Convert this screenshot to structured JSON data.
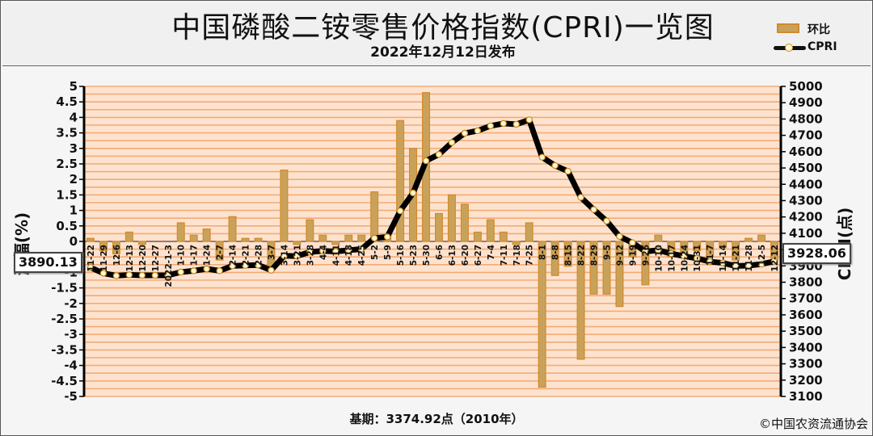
{
  "header": {
    "title": "中国磷酸二铵零售价格指数(CPRI)一览图",
    "subtitle": "2022年12月12日发布"
  },
  "legend": {
    "bar_label": "环比",
    "line_label": "CPRI"
  },
  "footer": {
    "base": "基期：3374.92点（2010年）",
    "copyright": "©中国农资流通协会"
  },
  "callouts": {
    "left": "3890.13",
    "right": "3928.06"
  },
  "colors": {
    "band_light": "#fde3cf",
    "band_dark": "#f2ab76",
    "bar_fill": "#c9a25a",
    "bar_edge": "#d38a2c",
    "line": "#000000",
    "marker": "#fff6d0"
  },
  "chart_data": {
    "type": "bar",
    "title": "中国磷酸二铵零售价格指数(CPRI)一览图",
    "ylabel_left": "涨幅(%)",
    "ylabel_right": "CPRI(点)",
    "ylim_left": [
      -5,
      5
    ],
    "ylim_right": [
      3100,
      5000
    ],
    "yticks_left": [
      "5",
      "4.5",
      "4",
      "3.5",
      "3",
      "2.5",
      "2",
      "1.5",
      "1",
      "0.5",
      "0",
      "-0.5",
      "-1",
      "-1.5",
      "-2",
      "-2.5",
      "-3",
      "-3.5",
      "-4",
      "-4.5",
      "-5"
    ],
    "yticks_right": [
      "5000",
      "4900",
      "4800",
      "4700",
      "4600",
      "4500",
      "4400",
      "4300",
      "4200",
      "4100",
      "4000",
      "3900",
      "3800",
      "3700",
      "3600",
      "3500",
      "3400",
      "3300",
      "3200",
      "3100"
    ],
    "categories": [
      "11-22",
      "11-29",
      "12-6",
      "12-13",
      "12-20",
      "12-27",
      "2022-1-3",
      "1-10",
      "1-17",
      "1-24",
      "2-7",
      "2-14",
      "2-21",
      "2-28",
      "3-7",
      "3-14",
      "3-21",
      "3-28",
      "4-4",
      "4-11",
      "4-18",
      "4-25",
      "5-2",
      "5-9",
      "5-16",
      "5-23",
      "5-30",
      "6-6",
      "6-13",
      "6-20",
      "6-27",
      "7-4",
      "7-11",
      "7-18",
      "7-25",
      "8-1",
      "8-8",
      "8-15",
      "8-22",
      "8-29",
      "9-5",
      "9-12",
      "9-19",
      "9-26",
      "10-10",
      "10-17",
      "10-24",
      "10-31",
      "11-7",
      "11-14",
      "11-21",
      "11-28",
      "12-5",
      "12-12"
    ],
    "series": [
      {
        "name": "环比",
        "values": [
          0.1,
          -0.3,
          -0.4,
          0.3,
          -0.1,
          0.0,
          0.0,
          0.6,
          0.2,
          0.4,
          -0.6,
          0.8,
          0.1,
          0.1,
          -0.8,
          2.3,
          -0.1,
          0.7,
          0.2,
          -0.1,
          0.2,
          0.2,
          1.6,
          0.2,
          3.9,
          3.0,
          4.8,
          0.9,
          1.5,
          1.2,
          0.3,
          0.7,
          0.3,
          -0.1,
          0.6,
          -4.7,
          -1.1,
          -0.8,
          -3.8,
          -1.7,
          -1.7,
          -2.1,
          -0.5,
          -1.4,
          0.2,
          -0.5,
          -0.4,
          -0.3,
          -0.5,
          -0.2,
          -0.6,
          0.1,
          0.2,
          -0.6
        ]
      },
      {
        "name": "CPRI",
        "values": [
          3890.13,
          3855,
          3840,
          3845,
          3842,
          3842,
          3842,
          3862,
          3870,
          3882,
          3870,
          3900,
          3903,
          3905,
          3873,
          3962,
          3960,
          3985,
          3992,
          3988,
          3996,
          4003,
          4070,
          4078,
          4237,
          4347,
          4544,
          4583,
          4656,
          4713,
          4728,
          4758,
          4773,
          4768,
          4795,
          4566,
          4515,
          4480,
          4320,
          4245,
          4175,
          4080,
          4042,
          3988,
          3996,
          3975,
          3960,
          3946,
          3926,
          3918,
          3899,
          3902,
          3911,
          3928.06
        ]
      }
    ],
    "grid": true,
    "legend_position": "top-right"
  }
}
